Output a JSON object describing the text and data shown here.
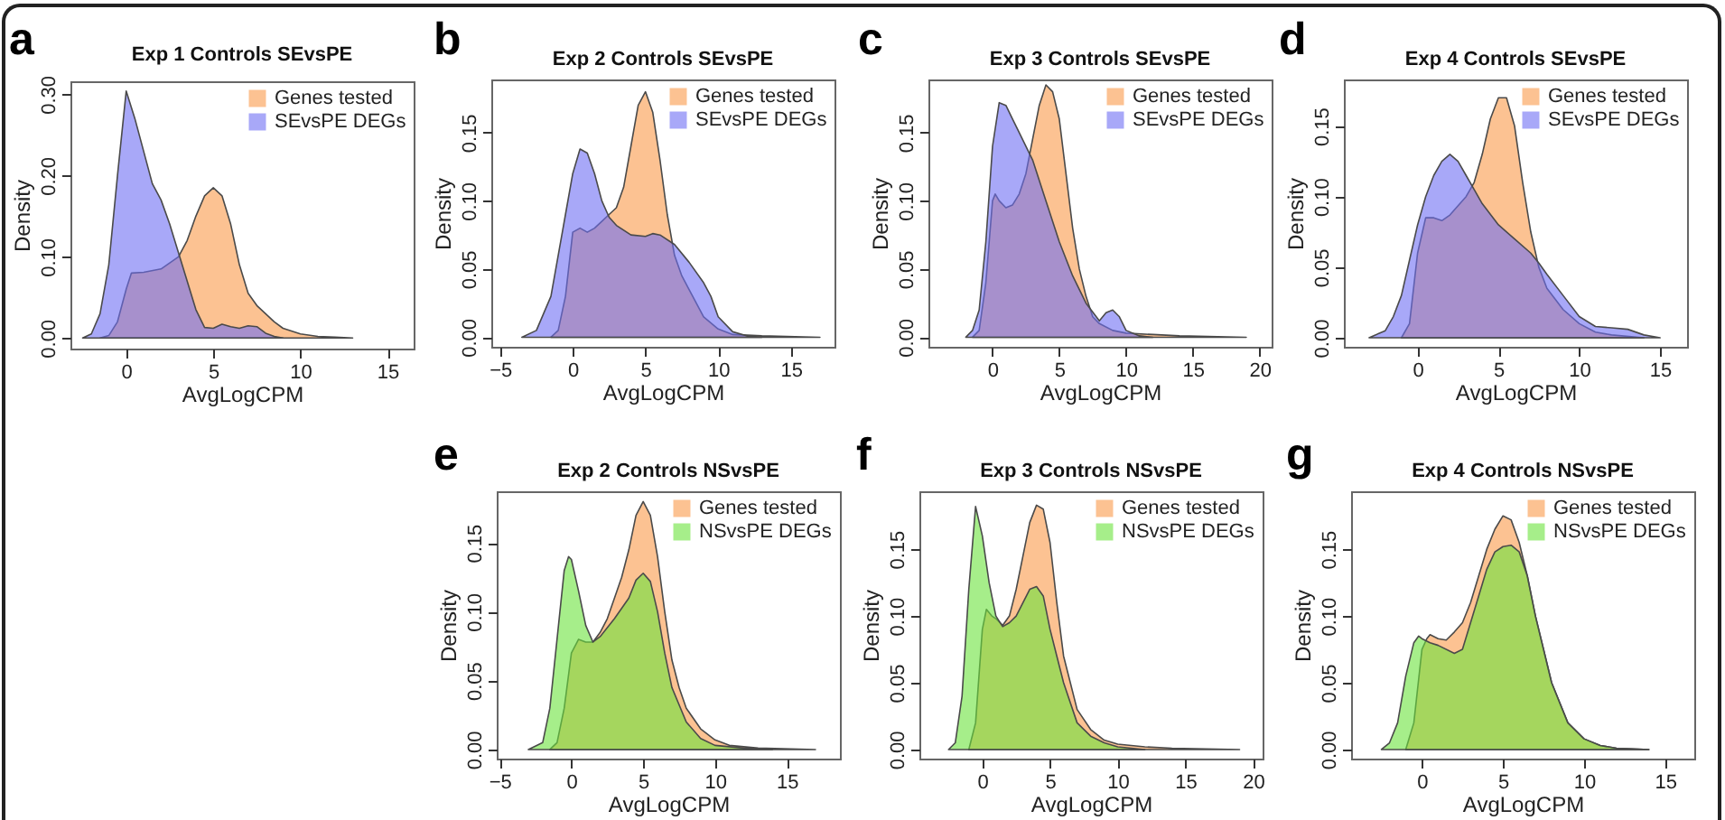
{
  "chart_data": [
    {
      "type": "area",
      "title": "Exp 1 Controls SEvsPE",
      "xlabel": "AvgLogCPM",
      "ylabel": "Density",
      "annotations": [
        "a"
      ],
      "legend": "top right",
      "xlim": [
        -3.2,
        16.5
      ],
      "ylim": [
        -0.013,
        0.316
      ],
      "xticks": [
        0,
        5,
        10,
        15
      ],
      "yticks": [
        {
          "value": 0,
          "label": "0.00"
        },
        {
          "value": 0.1,
          "label": "0.10"
        },
        {
          "value": 0.2,
          "label": "0.20"
        },
        {
          "value": 0.3,
          "label": "0.30"
        }
      ],
      "series": [
        {
          "name": "Genes tested",
          "color": "#fa9949",
          "x": [
            -1.5,
            -1,
            -0.5,
            0,
            0.3,
            1,
            2,
            3,
            3.5,
            4,
            4.5,
            5,
            5.5,
            6,
            6.5,
            7,
            7.5,
            8,
            8.5,
            9,
            10,
            11,
            12,
            13
          ],
          "values": [
            0,
            0.003,
            0.02,
            0.06,
            0.08,
            0.081,
            0.085,
            0.1,
            0.12,
            0.15,
            0.175,
            0.185,
            0.175,
            0.14,
            0.09,
            0.055,
            0.04,
            0.03,
            0.02,
            0.012,
            0.005,
            0.002,
            0.001,
            0
          ]
        },
        {
          "name": "SEvsPE DEGs",
          "color": "#6e6ef3",
          "x": [
            -2.5,
            -2,
            -1.5,
            -1,
            -0.5,
            0,
            0.5,
            1,
            1.5,
            2,
            2.5,
            3,
            3.5,
            4,
            4.5,
            5,
            5.5,
            6,
            6.5,
            7,
            7.5,
            8,
            8.5,
            9
          ],
          "values": [
            0,
            0.005,
            0.03,
            0.09,
            0.2,
            0.304,
            0.27,
            0.23,
            0.19,
            0.17,
            0.14,
            0.105,
            0.07,
            0.035,
            0.013,
            0.012,
            0.017,
            0.014,
            0.012,
            0.015,
            0.014,
            0.006,
            0.002,
            0
          ]
        }
      ]
    },
    {
      "type": "area",
      "title": "Exp 2 Controls SEvsPE",
      "xlabel": "AvgLogCPM",
      "ylabel": "Density",
      "annotations": [
        "b"
      ],
      "legend": "top right",
      "xlim": [
        -5.6,
        18
      ],
      "ylim": [
        -0.007,
        0.189
      ],
      "xticks": [
        -5,
        0,
        5,
        10,
        15
      ],
      "yticks": [
        {
          "value": 0,
          "label": "0.00"
        },
        {
          "value": 0.05,
          "label": "0.05"
        },
        {
          "value": 0.1,
          "label": "0.10"
        },
        {
          "value": 0.15,
          "label": "0.15"
        }
      ],
      "series": [
        {
          "name": "Genes tested",
          "color": "#fa9949",
          "x": [
            -1.5,
            -1,
            -0.5,
            0,
            0.5,
            1,
            1.5,
            2,
            2.5,
            3,
            3.5,
            4,
            4.5,
            5,
            5.5,
            6,
            6.5,
            7,
            7.5,
            8,
            9,
            10,
            11,
            13,
            17
          ],
          "values": [
            0,
            0.005,
            0.03,
            0.077,
            0.08,
            0.077,
            0.08,
            0.085,
            0.09,
            0.095,
            0.11,
            0.14,
            0.17,
            0.18,
            0.165,
            0.13,
            0.09,
            0.06,
            0.045,
            0.035,
            0.015,
            0.006,
            0.002,
            0.001,
            0
          ]
        },
        {
          "name": "SEvsPE DEGs",
          "color": "#6e6ef3",
          "x": [
            -3.5,
            -2.5,
            -1.5,
            -0.5,
            0,
            0.5,
            1,
            1.5,
            2,
            2.5,
            3,
            4,
            5,
            5.5,
            6,
            7,
            8,
            9,
            9.5,
            10,
            11,
            12,
            13
          ],
          "values": [
            0,
            0.005,
            0.03,
            0.09,
            0.12,
            0.138,
            0.135,
            0.12,
            0.1,
            0.088,
            0.082,
            0.075,
            0.074,
            0.076,
            0.075,
            0.068,
            0.055,
            0.04,
            0.03,
            0.015,
            0.004,
            0.001,
            0
          ]
        }
      ]
    },
    {
      "type": "area",
      "title": "Exp 3 Controls SEvsPE",
      "xlabel": "AvgLogCPM",
      "ylabel": "Density",
      "annotations": [
        "c"
      ],
      "legend": "top right",
      "xlim": [
        -4.8,
        20.9
      ],
      "ylim": [
        -0.007,
        0.189
      ],
      "xticks": [
        0,
        5,
        10,
        15,
        20
      ],
      "yticks": [
        {
          "value": 0,
          "label": "0.00"
        },
        {
          "value": 0.05,
          "label": "0.05"
        },
        {
          "value": 0.1,
          "label": "0.10"
        },
        {
          "value": 0.15,
          "label": "0.15"
        }
      ],
      "series": [
        {
          "name": "Genes tested",
          "color": "#fa9949",
          "x": [
            -1.5,
            -1,
            -0.5,
            0,
            0.2,
            0.5,
            1,
            1.5,
            2,
            2.5,
            3,
            3.5,
            4,
            4.5,
            5,
            5.5,
            6,
            6.5,
            7,
            7.5,
            8,
            9,
            10,
            12,
            14,
            19
          ],
          "values": [
            0,
            0.005,
            0.04,
            0.1,
            0.105,
            0.1,
            0.095,
            0.097,
            0.105,
            0.12,
            0.145,
            0.17,
            0.185,
            0.18,
            0.16,
            0.12,
            0.08,
            0.05,
            0.03,
            0.015,
            0.01,
            0.005,
            0.003,
            0.002,
            0.001,
            0
          ]
        },
        {
          "name": "SEvsPE DEGs",
          "color": "#6e6ef3",
          "x": [
            -2,
            -1.5,
            -1,
            -0.5,
            0,
            0.5,
            1,
            1.5,
            2,
            3,
            4,
            5,
            6,
            7,
            8,
            8.5,
            9,
            9.5,
            10,
            11,
            12
          ],
          "values": [
            0,
            0.005,
            0.02,
            0.07,
            0.14,
            0.172,
            0.17,
            0.16,
            0.15,
            0.13,
            0.1,
            0.07,
            0.045,
            0.025,
            0.012,
            0.018,
            0.02,
            0.015,
            0.005,
            0.001,
            0
          ]
        }
      ]
    },
    {
      "type": "area",
      "title": "Exp 4 Controls SEvsPE",
      "xlabel": "AvgLogCPM",
      "ylabel": "Density",
      "annotations": [
        "d"
      ],
      "legend": "top right",
      "xlim": [
        -4.56,
        16.67
      ],
      "ylim": [
        -0.0064,
        0.183
      ],
      "xticks": [
        0,
        5,
        10,
        15
      ],
      "yticks": [
        {
          "value": 0,
          "label": "0.00"
        },
        {
          "value": 0.05,
          "label": "0.05"
        },
        {
          "value": 0.1,
          "label": "0.10"
        },
        {
          "value": 0.15,
          "label": "0.15"
        }
      ],
      "series": [
        {
          "name": "Genes tested",
          "color": "#fa9949",
          "x": [
            -1,
            -0.5,
            0,
            0.5,
            1,
            1.5,
            2,
            3,
            3.5,
            4,
            4.5,
            5,
            5.5,
            6,
            6.5,
            7,
            7.5,
            8,
            9,
            10,
            11,
            12,
            14
          ],
          "values": [
            0,
            0.01,
            0.06,
            0.085,
            0.085,
            0.083,
            0.087,
            0.1,
            0.11,
            0.13,
            0.155,
            0.17,
            0.17,
            0.15,
            0.11,
            0.075,
            0.05,
            0.035,
            0.02,
            0.01,
            0.004,
            0.002,
            0
          ]
        },
        {
          "name": "SEvsPE DEGs",
          "color": "#6e6ef3",
          "x": [
            -3,
            -2,
            -1.5,
            -1,
            -0.5,
            0,
            0.5,
            1,
            1.5,
            2,
            2.5,
            3,
            3.5,
            4,
            5,
            6,
            7,
            7.5,
            8,
            9,
            10,
            11,
            12,
            13,
            14,
            15
          ],
          "values": [
            0,
            0.005,
            0.015,
            0.03,
            0.055,
            0.08,
            0.1,
            0.115,
            0.125,
            0.13,
            0.125,
            0.115,
            0.105,
            0.095,
            0.08,
            0.07,
            0.06,
            0.053,
            0.045,
            0.03,
            0.015,
            0.008,
            0.007,
            0.006,
            0.002,
            0
          ]
        }
      ]
    },
    {
      "type": "area",
      "title": "Exp 2 Controls NSvsPE",
      "xlabel": "AvgLogCPM",
      "ylabel": "Density",
      "annotations": [
        "e"
      ],
      "legend": "top right",
      "xlim": [
        -5.2,
        18.7
      ],
      "ylim": [
        -0.0066,
        0.1875
      ],
      "xticks": [
        -5,
        0,
        5,
        10,
        15
      ],
      "yticks": [
        {
          "value": 0,
          "label": "0.00"
        },
        {
          "value": 0.05,
          "label": "0.05"
        },
        {
          "value": 0.1,
          "label": "0.10"
        },
        {
          "value": 0.15,
          "label": "0.15"
        }
      ],
      "series": [
        {
          "name": "Genes tested",
          "color": "#fa9949",
          "x": [
            -1.5,
            -1,
            -0.5,
            0,
            0.5,
            1,
            1.5,
            2,
            2.5,
            3,
            3.5,
            4,
            4.5,
            5,
            5.5,
            6,
            6.5,
            7,
            7.5,
            8,
            9,
            10,
            11,
            13,
            17
          ],
          "values": [
            0,
            0.005,
            0.03,
            0.07,
            0.08,
            0.078,
            0.078,
            0.085,
            0.095,
            0.11,
            0.125,
            0.145,
            0.17,
            0.18,
            0.17,
            0.14,
            0.1,
            0.065,
            0.045,
            0.03,
            0.015,
            0.007,
            0.003,
            0.001,
            0
          ]
        },
        {
          "name": "NSvsPE DEGs",
          "color": "#6be33c",
          "x": [
            -3,
            -2,
            -1.5,
            -1,
            -0.5,
            -0.2,
            0,
            0.5,
            1,
            1.5,
            2,
            3,
            4,
            4.5,
            5,
            5.5,
            6,
            6.5,
            7,
            8,
            9,
            10,
            12,
            14
          ],
          "values": [
            0,
            0.005,
            0.03,
            0.08,
            0.13,
            0.14,
            0.138,
            0.115,
            0.09,
            0.078,
            0.082,
            0.095,
            0.11,
            0.123,
            0.128,
            0.122,
            0.1,
            0.07,
            0.045,
            0.02,
            0.008,
            0.003,
            0.001,
            0
          ]
        }
      ]
    },
    {
      "type": "area",
      "title": "Exp 3 Controls NSvsPE",
      "xlabel": "AvgLogCPM",
      "ylabel": "Density",
      "annotations": [
        "f"
      ],
      "legend": "top right",
      "xlim": [
        -4.65,
        20.7
      ],
      "ylim": [
        -0.0068,
        0.1934
      ],
      "xticks": [
        0,
        5,
        10,
        15,
        20
      ],
      "yticks": [
        {
          "value": 0,
          "label": "0.00"
        },
        {
          "value": 0.05,
          "label": "0.05"
        },
        {
          "value": 0.1,
          "label": "0.10"
        },
        {
          "value": 0.15,
          "label": "0.15"
        }
      ],
      "series": [
        {
          "name": "Genes tested",
          "color": "#fa9949",
          "x": [
            -1,
            -0.5,
            0,
            0.3,
            0.7,
            1,
            1.5,
            2,
            2.5,
            3,
            3.5,
            4,
            4.5,
            5,
            5.5,
            6,
            6.5,
            7,
            8,
            9,
            10,
            12,
            14,
            19
          ],
          "values": [
            0,
            0.02,
            0.09,
            0.105,
            0.1,
            0.098,
            0.093,
            0.1,
            0.12,
            0.145,
            0.17,
            0.183,
            0.18,
            0.155,
            0.11,
            0.07,
            0.05,
            0.03,
            0.015,
            0.007,
            0.004,
            0.002,
            0.001,
            0
          ]
        },
        {
          "name": "NSvsPE DEGs",
          "color": "#6be33c",
          "x": [
            -2.5,
            -2,
            -1.5,
            -1,
            -0.5,
            0,
            0.5,
            1,
            1.5,
            2,
            2.5,
            3,
            3.5,
            4,
            4.5,
            5,
            5.5,
            6,
            7,
            8,
            9,
            10,
            12
          ],
          "values": [
            0,
            0.005,
            0.04,
            0.12,
            0.182,
            0.16,
            0.125,
            0.1,
            0.092,
            0.095,
            0.1,
            0.11,
            0.12,
            0.122,
            0.115,
            0.09,
            0.07,
            0.05,
            0.02,
            0.01,
            0.005,
            0.002,
            0
          ]
        }
      ]
    },
    {
      "type": "area",
      "title": "Exp 4 Controls NSvsPE",
      "xlabel": "AvgLogCPM",
      "ylabel": "Density",
      "annotations": [
        "g"
      ],
      "legend": "top right",
      "xlim": [
        -4.37,
        16.8
      ],
      "ylim": [
        -0.0068,
        0.1934
      ],
      "xticks": [
        0,
        5,
        10,
        15
      ],
      "yticks": [
        {
          "value": 0,
          "label": "0.00"
        },
        {
          "value": 0.05,
          "label": "0.05"
        },
        {
          "value": 0.1,
          "label": "0.10"
        },
        {
          "value": 0.15,
          "label": "0.15"
        }
      ],
      "series": [
        {
          "name": "Genes tested",
          "color": "#fa9949",
          "x": [
            -1,
            -0.5,
            0,
            0.3,
            0.5,
            1,
            1.5,
            2,
            2.5,
            3,
            3.5,
            4,
            4.5,
            5,
            5.5,
            6,
            6.5,
            7,
            7.5,
            8,
            9,
            10,
            11,
            12,
            14
          ],
          "values": [
            0,
            0.02,
            0.075,
            0.083,
            0.086,
            0.083,
            0.082,
            0.088,
            0.095,
            0.11,
            0.13,
            0.15,
            0.165,
            0.175,
            0.172,
            0.155,
            0.13,
            0.1,
            0.075,
            0.05,
            0.02,
            0.008,
            0.003,
            0.001,
            0
          ]
        },
        {
          "name": "NSvsPE DEGs",
          "color": "#6be33c",
          "x": [
            -2.5,
            -2,
            -1.5,
            -1,
            -0.5,
            -0.2,
            0,
            0.5,
            1,
            2,
            2.5,
            3,
            3.5,
            4,
            4.5,
            5,
            5.5,
            6,
            6.5,
            7,
            7.5,
            8,
            9,
            10,
            11,
            12,
            14
          ],
          "values": [
            0,
            0.005,
            0.02,
            0.055,
            0.08,
            0.085,
            0.083,
            0.08,
            0.078,
            0.072,
            0.075,
            0.095,
            0.115,
            0.135,
            0.148,
            0.152,
            0.153,
            0.148,
            0.13,
            0.1,
            0.075,
            0.05,
            0.02,
            0.008,
            0.003,
            0.001,
            0
          ]
        }
      ]
    }
  ]
}
